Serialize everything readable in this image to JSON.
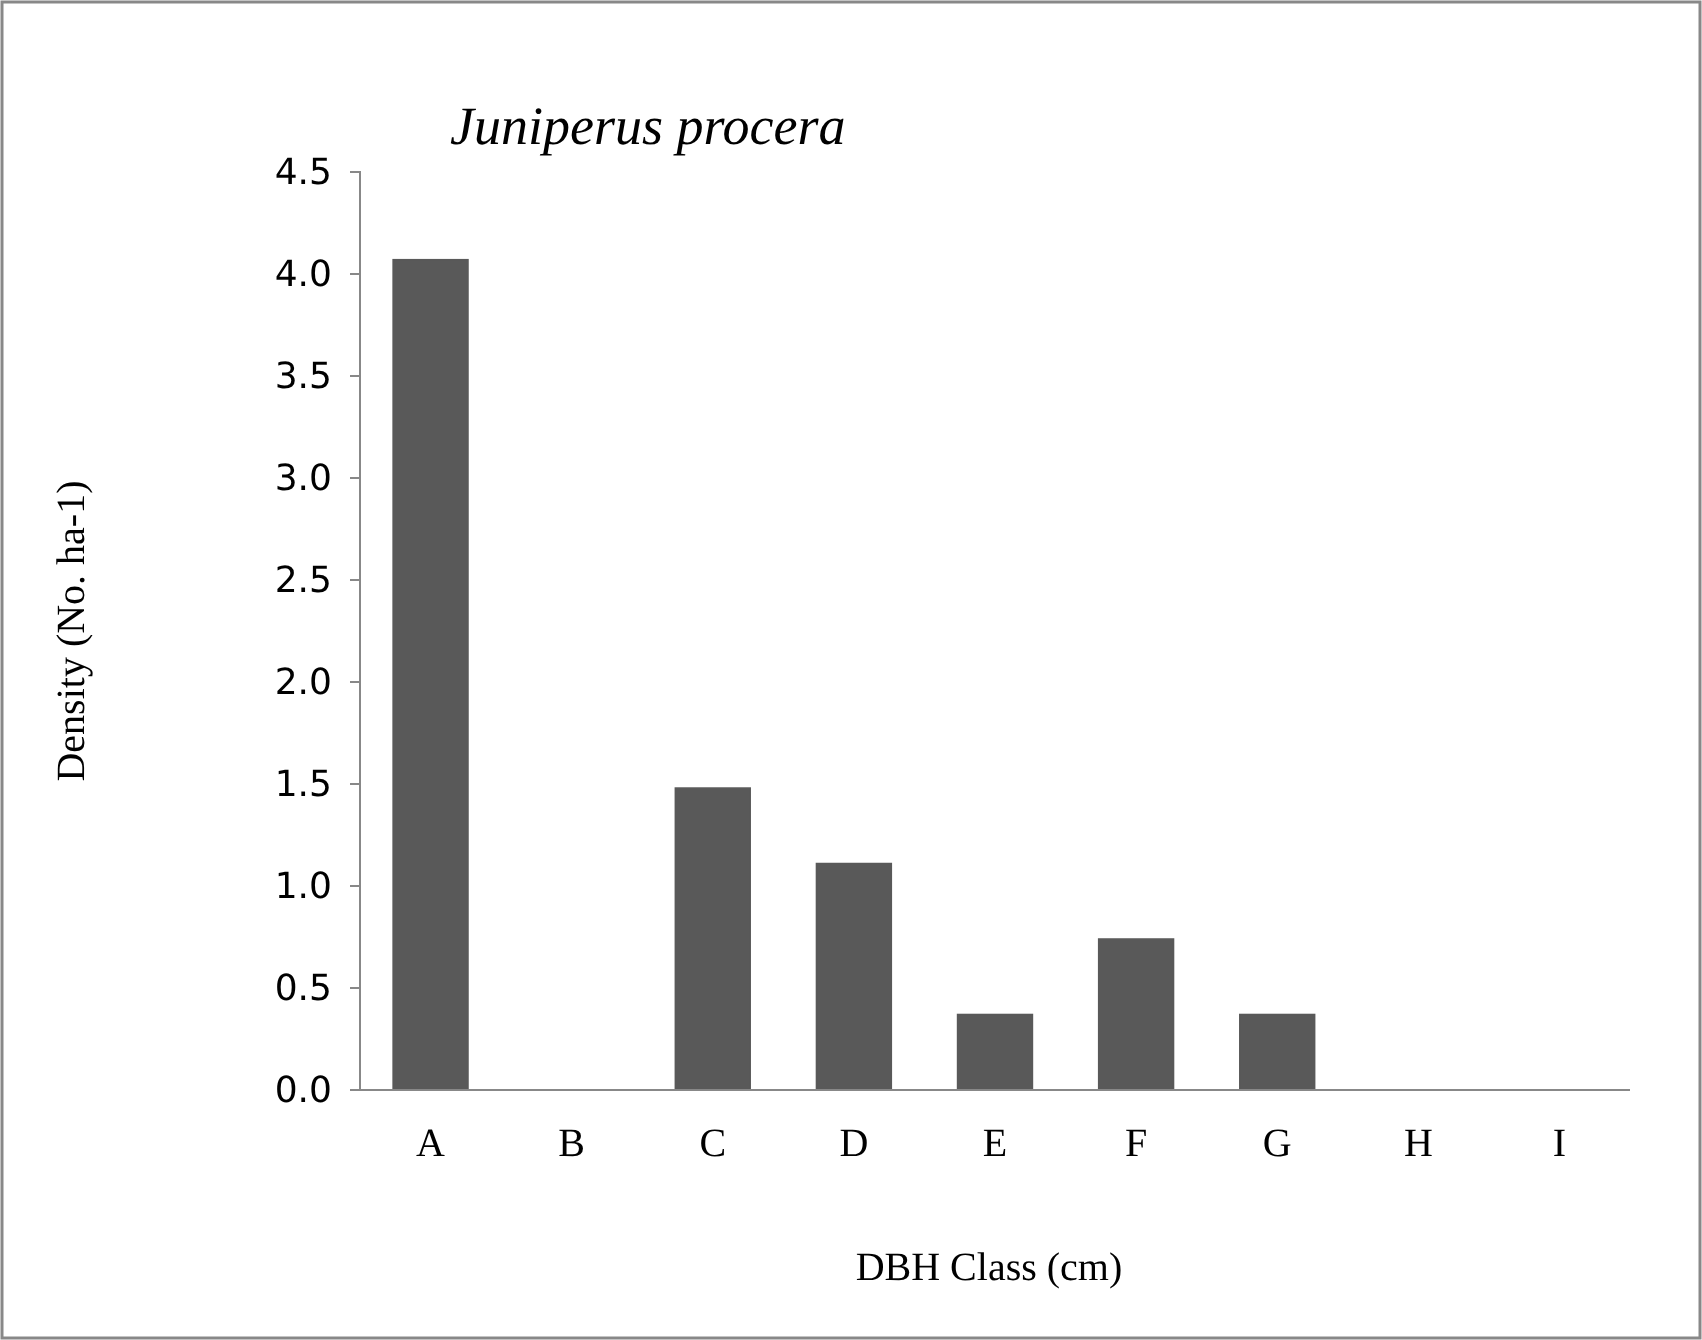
{
  "chart_data": {
    "type": "bar",
    "title": "Juniperus procera",
    "xlabel": "DBH Class (cm)",
    "ylabel": "Density (No. ha-1)",
    "categories": [
      "A",
      "B",
      "C",
      "D",
      "E",
      "F",
      "G",
      "H",
      "I"
    ],
    "values": [
      4.07,
      0,
      1.48,
      1.11,
      0.37,
      0.74,
      0.37,
      0,
      0
    ],
    "color": "#595959",
    "ylim": [
      0,
      4.5
    ],
    "yticks": [
      {
        "value": 0,
        "label": "0.0"
      },
      {
        "value": 0.5,
        "label": "0.5"
      },
      {
        "value": 1,
        "label": "1.0"
      },
      {
        "value": 1.5,
        "label": "1.5"
      },
      {
        "value": 2,
        "label": "2.0"
      },
      {
        "value": 2.5,
        "label": "2.5"
      },
      {
        "value": 3,
        "label": "3.0"
      },
      {
        "value": 3.5,
        "label": "3.5"
      },
      {
        "value": 4,
        "label": "4.0"
      },
      {
        "value": 4.5,
        "label": "4.5"
      }
    ],
    "grid": false
  }
}
